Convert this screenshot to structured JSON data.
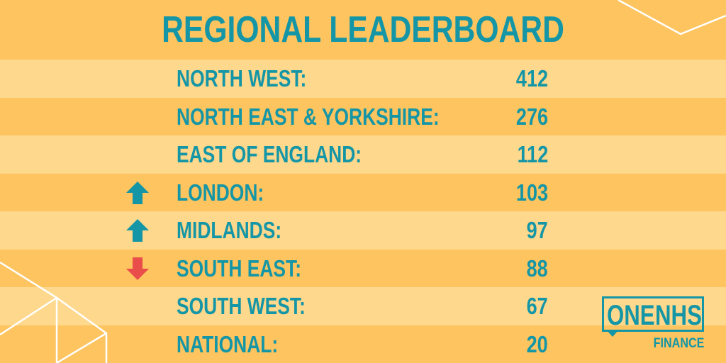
{
  "title": "REGIONAL LEADERBOARD",
  "colors": {
    "accent": "#1596a6",
    "background_dark": "#fdc45f",
    "background_light": "#fed88c",
    "up": "#1596a6",
    "down": "#e94e4b",
    "line": "#ffffff"
  },
  "rows": [
    {
      "label": "NORTH WEST:",
      "value": "412",
      "trend": "none"
    },
    {
      "label": "NORTH EAST & YORKSHIRE:",
      "value": "276",
      "trend": "none"
    },
    {
      "label": "EAST OF ENGLAND:",
      "value": "112",
      "trend": "none"
    },
    {
      "label": "LONDON:",
      "value": "103",
      "trend": "up-arrow-icon"
    },
    {
      "label": "MIDLANDS:",
      "value": "97",
      "trend": "up-arrow-icon"
    },
    {
      "label": "SOUTH EAST:",
      "value": "88",
      "trend": "down-arrow-icon"
    },
    {
      "label": "SOUTH WEST:",
      "value": "67",
      "trend": "none"
    },
    {
      "label": "NATIONAL:",
      "value": "20",
      "trend": "none"
    }
  ],
  "logo": {
    "one": "ONE",
    "nhs": "NHS",
    "sub": "FINANCE"
  }
}
